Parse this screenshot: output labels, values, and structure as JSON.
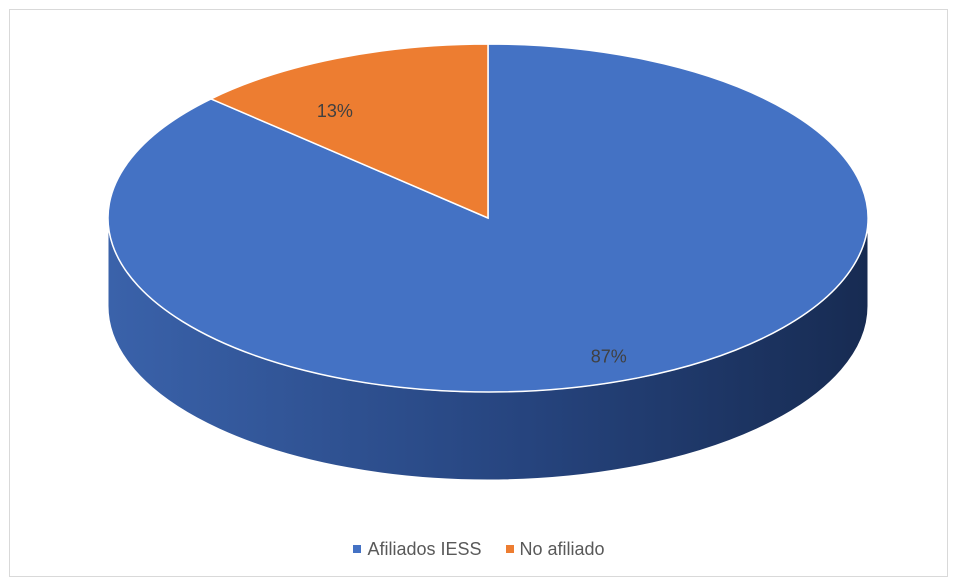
{
  "chart_data": {
    "type": "pie",
    "style": "3d",
    "title": "",
    "categories": [
      "Afiliados IESS",
      "No afiliado"
    ],
    "values": [
      87,
      13
    ],
    "data_labels": [
      "87%",
      "13%"
    ],
    "colors": [
      "#4472C4",
      "#ED7D31"
    ],
    "legend_position": "bottom"
  },
  "legend": {
    "items": [
      {
        "label": "Afiliados IESS",
        "color": "#4472C4"
      },
      {
        "label": "No afiliado",
        "color": "#ED7D31"
      }
    ]
  }
}
